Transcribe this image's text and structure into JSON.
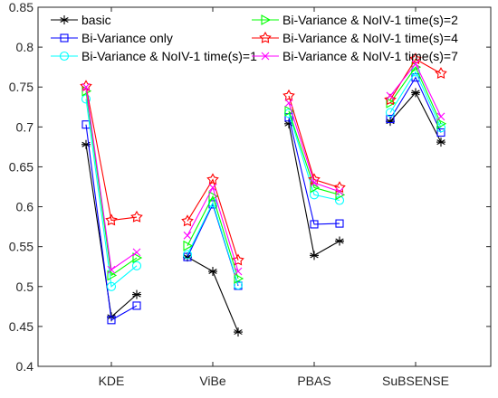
{
  "chart_data": {
    "type": "line",
    "title": "",
    "xlabel": "",
    "ylabel": "",
    "ylim": [
      0.4,
      0.85
    ],
    "yticks": [
      "0.4",
      "0.45",
      "0.5",
      "0.55",
      "0.6",
      "0.65",
      "0.7",
      "0.75",
      "0.8",
      "0.85"
    ],
    "groups": [
      {
        "label": "KDE",
        "x": [
          1,
          2,
          3
        ]
      },
      {
        "label": "ViBe",
        "x": [
          1,
          2,
          3
        ]
      },
      {
        "label": "PBAS",
        "x": [
          1,
          2,
          3
        ]
      },
      {
        "label": "SuBSENSE",
        "x": [
          1,
          2,
          3
        ]
      }
    ],
    "grid": false,
    "legend_position": "top",
    "series": [
      {
        "name": "basic",
        "color": "#000000",
        "marker": "asterisk",
        "values": [
          [
            0.678,
            0.462,
            0.49
          ],
          [
            0.537,
            0.519,
            0.443
          ],
          [
            0.704,
            0.539,
            0.557
          ],
          [
            0.707,
            0.743,
            0.681
          ]
        ]
      },
      {
        "name": "Bi-Variance only",
        "color": "#0000ff",
        "marker": "square",
        "values": [
          [
            0.703,
            0.458,
            0.476
          ],
          [
            0.537,
            0.603,
            0.501
          ],
          [
            0.712,
            0.578,
            0.579
          ],
          [
            0.71,
            0.762,
            0.693
          ]
        ]
      },
      {
        "name": "Bi-Variance & NoIV-1 time(s)=1",
        "color": "#00ffff",
        "marker": "circle",
        "values": [
          [
            0.735,
            0.5,
            0.526
          ],
          [
            0.54,
            0.605,
            0.502
          ],
          [
            0.717,
            0.615,
            0.608
          ],
          [
            0.718,
            0.769,
            0.699
          ]
        ]
      },
      {
        "name": "Bi-Variance & NoIV-1 time(s)=2",
        "color": "#00ff00",
        "marker": "triangle-right",
        "values": [
          [
            0.745,
            0.514,
            0.536
          ],
          [
            0.551,
            0.613,
            0.51
          ],
          [
            0.72,
            0.624,
            0.615
          ],
          [
            0.73,
            0.775,
            0.704
          ]
        ]
      },
      {
        "name": "Bi-Variance & NoIV-1 time(s)=4",
        "color": "#ff0000",
        "marker": "hexagram",
        "values": [
          [
            0.751,
            0.583,
            0.587
          ],
          [
            0.582,
            0.634,
            0.533
          ],
          [
            0.739,
            0.634,
            0.624
          ],
          [
            0.734,
            0.785,
            0.767
          ]
        ]
      },
      {
        "name": "Bi-Variance & NoIV-1 time(s)=7",
        "color": "#ff00ff",
        "marker": "x",
        "values": [
          [
            0.75,
            0.521,
            0.543
          ],
          [
            0.564,
            0.624,
            0.519
          ],
          [
            0.73,
            0.63,
            0.619
          ],
          [
            0.739,
            0.779,
            0.713
          ]
        ]
      }
    ]
  }
}
